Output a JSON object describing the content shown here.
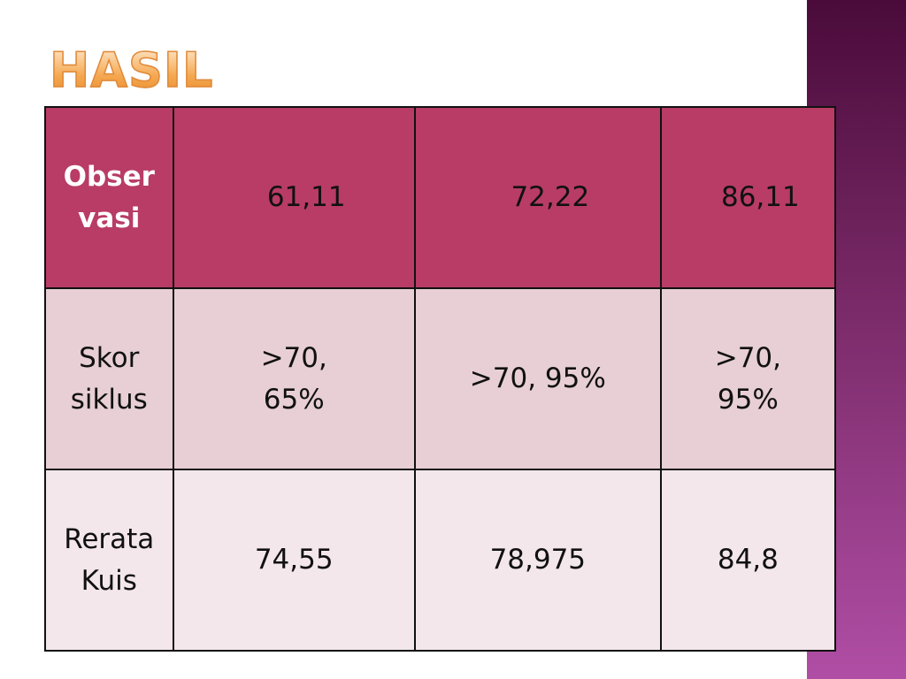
{
  "title": "HASIL",
  "table": {
    "rows": [
      [
        "Observasi",
        "61,11",
        "72,22",
        "86,11"
      ],
      [
        "Skor siklus",
        ">70, 65%",
        ">70, 95%",
        ">70, 95%"
      ],
      [
        "Rerata Kuis",
        "74,55",
        "78,975",
        "84,8"
      ]
    ]
  }
}
